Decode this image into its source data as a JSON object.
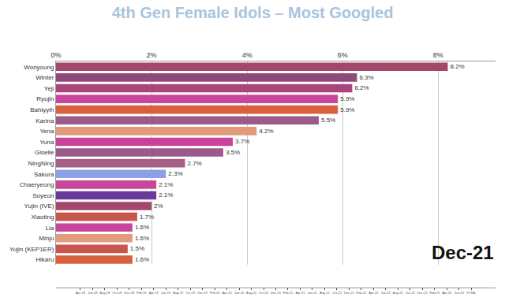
{
  "chart_data": {
    "type": "bar",
    "orientation": "horizontal",
    "title": "4th Gen Female Idols – Most Googled",
    "categories": [
      "Wonyoung",
      "Winter",
      "Yeji",
      "Ryujin",
      "Bahiyyih",
      "Karina",
      "Yena",
      "Yuna",
      "Giselle",
      "NingNing",
      "Sakura",
      "Chaeryeong",
      "Soyeon",
      "Yujin (IVE)",
      "Xiaoting",
      "Lia",
      "Minju",
      "Yujin (KEP1ER)",
      "Hikaru"
    ],
    "values": [
      8.2,
      6.3,
      6.2,
      5.9,
      5.9,
      5.5,
      4.2,
      3.7,
      3.5,
      2.7,
      2.3,
      2.1,
      2.1,
      2,
      1.7,
      1.6,
      1.6,
      1.5,
      1.6
    ],
    "value_labels": [
      "8.2%",
      "6.3%",
      "6.2%",
      "5.9%",
      "5.9%",
      "5.5%",
      "4.2%",
      "3.7%",
      "3.5%",
      "2.7%",
      "2.3%",
      "2.1%",
      "2.1%",
      "2%",
      "1.7%",
      "1.6%",
      "1.6%",
      "1.5%",
      "1.6%"
    ],
    "colors": [
      "#a3476b",
      "#8e4a78",
      "#a8457c",
      "#c9479a",
      "#d9603f",
      "#9a5a8a",
      "#e39a7c",
      "#c8429a",
      "#9a5a8a",
      "#a66088",
      "#8ca0e6",
      "#c9479a",
      "#6a3a9a",
      "#a3476b",
      "#c9564a",
      "#c9479a",
      "#e39a7c",
      "#c9564a",
      "#d9603f"
    ],
    "data_labels": true,
    "xlim": [
      0,
      9.2
    ],
    "xticks": [
      {
        "value": 0,
        "label": "0%"
      },
      {
        "value": 2,
        "label": "2%"
      },
      {
        "value": 4,
        "label": "4%"
      },
      {
        "value": 6,
        "label": "6%"
      },
      {
        "value": 8,
        "label": "8%"
      }
    ],
    "grid": true,
    "timeline": {
      "labels": [
        "Apr-18",
        "Jun-18",
        "Aug-18",
        "Oct-18",
        "Dec-18",
        "Feb-19",
        "Apr-19",
        "Jun-19",
        "Aug-19",
        "Oct-19",
        "Dec-19",
        "Feb-20",
        "Apr-20",
        "Jun-20",
        "Aug-20",
        "Oct-20",
        "Dec-20",
        "Feb-21",
        "Apr-21",
        "Jun-21",
        "Aug-21",
        "Oct-21",
        "Dec-21",
        "Feb-22",
        "Apr-22",
        "Jun-22",
        "Aug-22",
        "Oct-22",
        "Dec-22",
        "Feb-23",
        "Apr-23",
        "Jun-23",
        "TOTAL"
      ],
      "current": "Dec-21"
    }
  }
}
